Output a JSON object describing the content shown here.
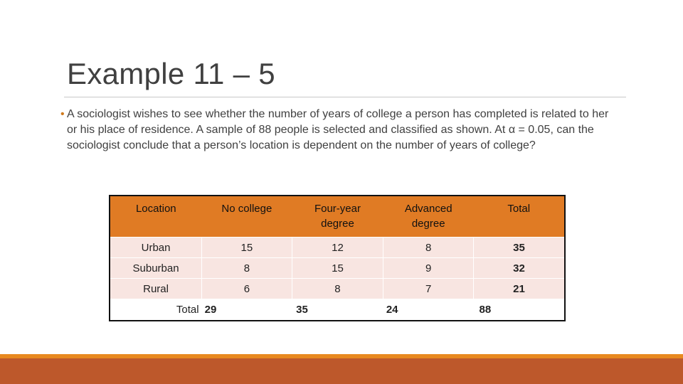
{
  "slide": {
    "title": "Example 11 – 5",
    "bullet": "•",
    "body": "A sociologist wishes to see whether the number of years of college a person has completed is related to her or his place of residence. A sample of 88 people is selected and classified as shown. At α = 0.05, can the sociologist conclude that a person’s location is dependent on the number of years of college?"
  },
  "table": {
    "headers": [
      "Location",
      "No college",
      "Four-year degree",
      "Advanced degree",
      "Total"
    ],
    "rows": [
      [
        "Urban",
        "15",
        "12",
        "8",
        "35"
      ],
      [
        "Suburban",
        "8",
        "15",
        "9",
        "32"
      ],
      [
        "Rural",
        "6",
        "8",
        "7",
        "21"
      ]
    ],
    "totals": {
      "label": "Total",
      "no_college": "29",
      "four_year": "35",
      "advanced": "24",
      "total": "88"
    }
  },
  "colors": {
    "header_fill": "#e07b24",
    "row_fill": "#f8e5e1",
    "bottom_bar": "#bd582b",
    "bottom_bar_accent": "#e8891f"
  }
}
